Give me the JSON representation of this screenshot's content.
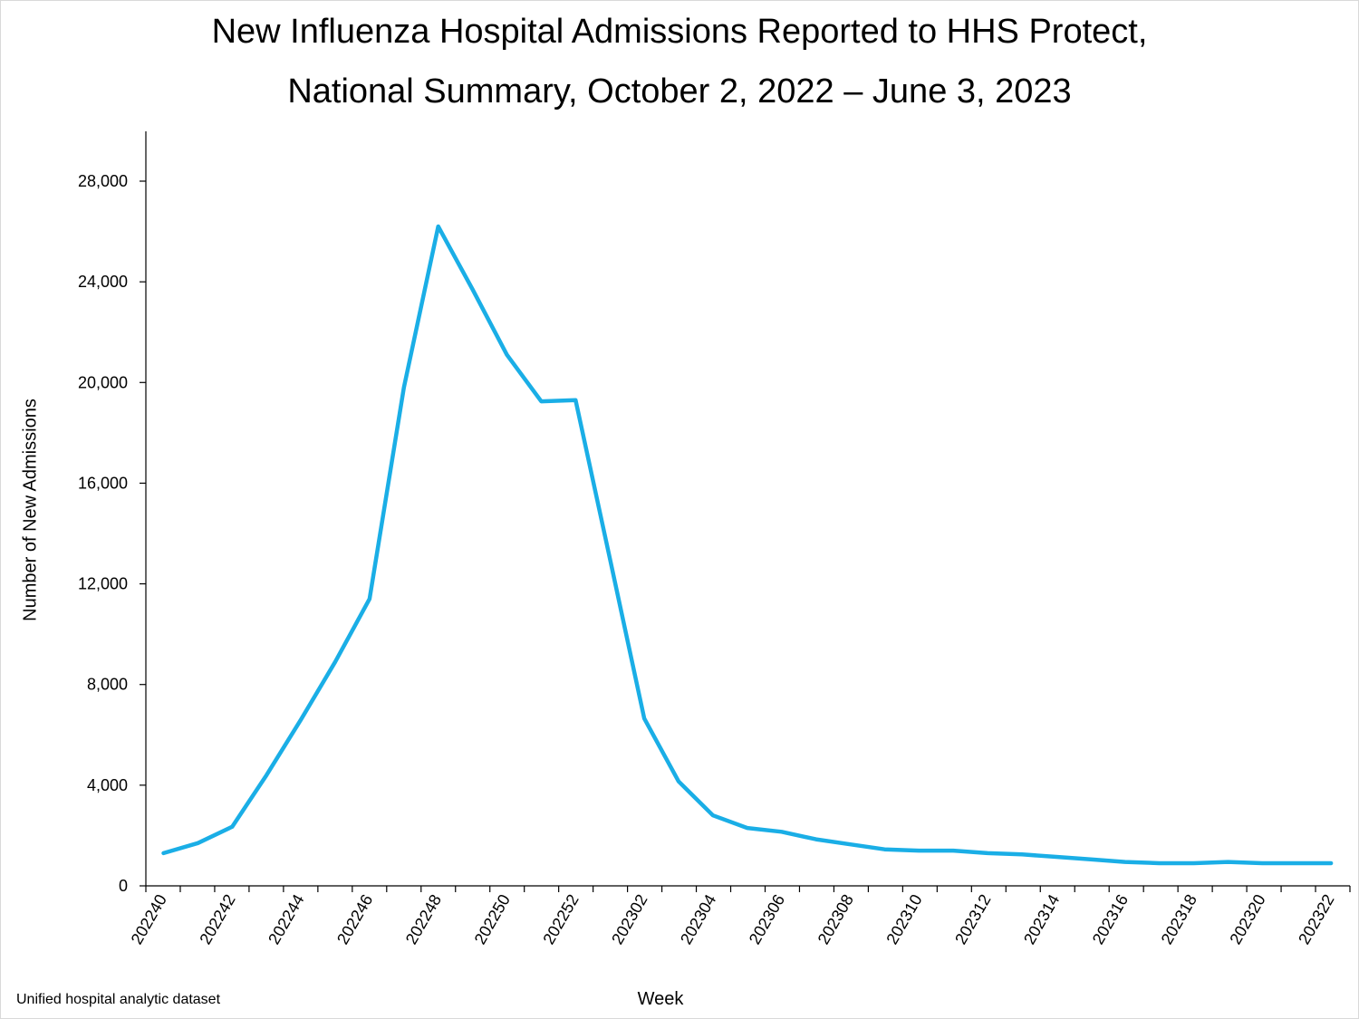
{
  "title_line1": "New Influenza Hospital Admissions Reported to HHS Protect,",
  "title_line2": "National Summary, October 2, 2022 – June 3, 2023",
  "source_note": "Unified hospital analytic dataset",
  "colors": {
    "line": "#1aaee6",
    "axis": "#000000"
  },
  "chart_data": {
    "type": "line",
    "title": "New Influenza Hospital Admissions Reported to HHS Protect, National Summary, October 2, 2022 – June 3, 2023",
    "xlabel": "Week",
    "ylabel": "Number of New Admissions",
    "ylim": [
      0,
      30000
    ],
    "yticks": [
      0,
      4000,
      8000,
      12000,
      16000,
      20000,
      24000,
      28000
    ],
    "ytick_labels": [
      "0",
      "4,000",
      "8,000",
      "12,000",
      "16,000",
      "20,000",
      "24,000",
      "28,000"
    ],
    "x_tick_labels": [
      "202240",
      "202242",
      "202244",
      "202246",
      "202248",
      "202250",
      "202252",
      "202302",
      "202304",
      "202306",
      "202308",
      "202310",
      "202312",
      "202314",
      "202316",
      "202318",
      "202320",
      "202322"
    ],
    "grid": false,
    "legend": "none",
    "series": [
      {
        "x": [
          "202240",
          "202241",
          "202242",
          "202243",
          "202244",
          "202245",
          "202246",
          "202247",
          "202248",
          "202249",
          "202250",
          "202251",
          "202252",
          "202301",
          "202302",
          "202303",
          "202304",
          "202305",
          "202306",
          "202307",
          "202308",
          "202309",
          "202310",
          "202311",
          "202312",
          "202313",
          "202314",
          "202315",
          "202316",
          "202317",
          "202318",
          "202319",
          "202320",
          "202321",
          "202322"
        ],
        "values": [
          1300,
          1700,
          2350,
          4400,
          6600,
          8900,
          11400,
          19800,
          26200,
          23700,
          21100,
          19250,
          19300,
          13000,
          6650,
          4150,
          2800,
          2300,
          2150,
          1850,
          1650,
          1450,
          1400,
          1400,
          1300,
          1250,
          1150,
          1050,
          950,
          900,
          900,
          950,
          900,
          900,
          900
        ]
      }
    ]
  }
}
